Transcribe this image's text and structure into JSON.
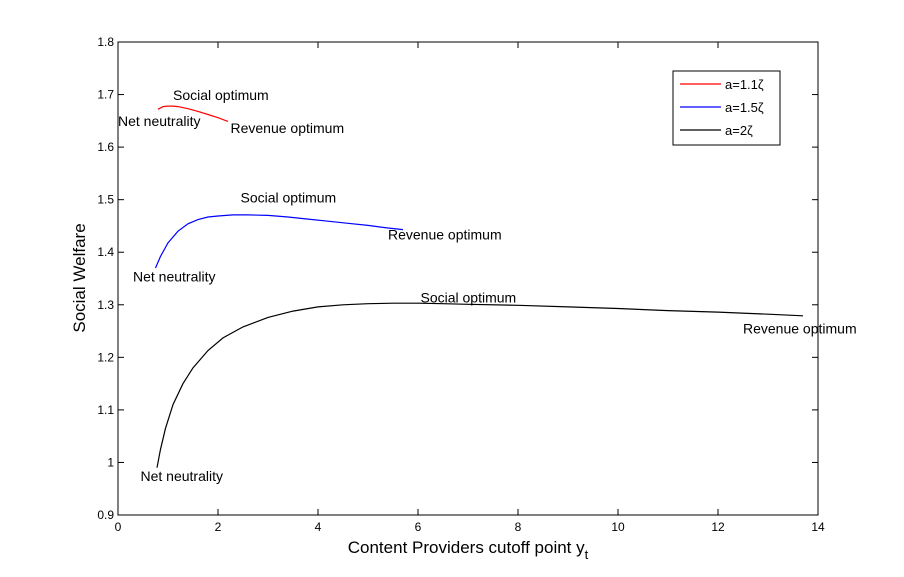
{
  "chart_data": {
    "type": "line",
    "title": "",
    "xlabel": "Content Providers cutoff point y",
    "xlabel_subscript": "t",
    "ylabel": "Social Welfare",
    "xlim": [
      0,
      14
    ],
    "ylim": [
      0.9,
      1.8
    ],
    "xticks": [
      0,
      2,
      4,
      6,
      8,
      10,
      12,
      14
    ],
    "yticks": [
      0.9,
      1,
      1.1,
      1.2,
      1.3,
      1.4,
      1.5,
      1.6,
      1.7,
      1.8
    ],
    "xtick_labels": [
      "0",
      "2",
      "4",
      "6",
      "8",
      "10",
      "12",
      "14"
    ],
    "ytick_labels": [
      "0.9",
      "1",
      "1.1",
      "1.2",
      "1.3",
      "1.4",
      "1.5",
      "1.6",
      "1.7",
      "1.8"
    ],
    "grid": false,
    "legend_position": "top-right",
    "series": [
      {
        "name": "a=1.1ζ",
        "color": "#ff0000",
        "x": [
          0.8,
          0.9,
          1.0,
          1.1,
          1.2,
          1.4,
          1.6,
          1.8,
          2.0,
          2.2
        ],
        "y": [
          1.672,
          1.677,
          1.678,
          1.678,
          1.677,
          1.673,
          1.668,
          1.662,
          1.656,
          1.649
        ]
      },
      {
        "name": "a=1.5ζ",
        "color": "#0000ff",
        "x": [
          0.75,
          0.85,
          1.0,
          1.2,
          1.4,
          1.6,
          1.8,
          2.0,
          2.3,
          2.6,
          3.0,
          3.4,
          3.8,
          4.2,
          4.6,
          5.0,
          5.4,
          5.7
        ],
        "y": [
          1.37,
          1.392,
          1.418,
          1.44,
          1.454,
          1.462,
          1.467,
          1.469,
          1.471,
          1.471,
          1.47,
          1.467,
          1.463,
          1.459,
          1.455,
          1.451,
          1.446,
          1.443
        ]
      },
      {
        "name": "a=2ζ",
        "color": "#000000",
        "x": [
          0.78,
          0.85,
          0.95,
          1.1,
          1.3,
          1.5,
          1.8,
          2.1,
          2.5,
          3.0,
          3.5,
          4.0,
          4.5,
          5.0,
          5.5,
          6.0,
          6.5,
          7.0,
          8.0,
          9.0,
          10.0,
          11.0,
          12.0,
          13.0,
          13.7
        ],
        "y": [
          0.99,
          1.025,
          1.065,
          1.11,
          1.15,
          1.18,
          1.213,
          1.237,
          1.258,
          1.276,
          1.288,
          1.296,
          1.3,
          1.302,
          1.303,
          1.303,
          1.302,
          1.301,
          1.299,
          1.296,
          1.293,
          1.289,
          1.286,
          1.282,
          1.279
        ]
      }
    ],
    "annotations": [
      {
        "text": "Social optimum",
        "x": 1.1,
        "y": 1.69
      },
      {
        "text": "Net neutrality",
        "x": 0.0,
        "y": 1.64
      },
      {
        "text": "Revenue optimum",
        "x": 2.25,
        "y": 1.627
      },
      {
        "text": "Social optimum",
        "x": 2.45,
        "y": 1.495
      },
      {
        "text": "Net neutrality",
        "x": 0.3,
        "y": 1.344
      },
      {
        "text": "Revenue optimum",
        "x": 5.4,
        "y": 1.424
      },
      {
        "text": "Social optimum",
        "x": 6.05,
        "y": 1.304
      },
      {
        "text": "Revenue optimum",
        "x": 12.5,
        "y": 1.245
      },
      {
        "text": "Net neutrality",
        "x": 0.45,
        "y": 0.965
      }
    ]
  }
}
